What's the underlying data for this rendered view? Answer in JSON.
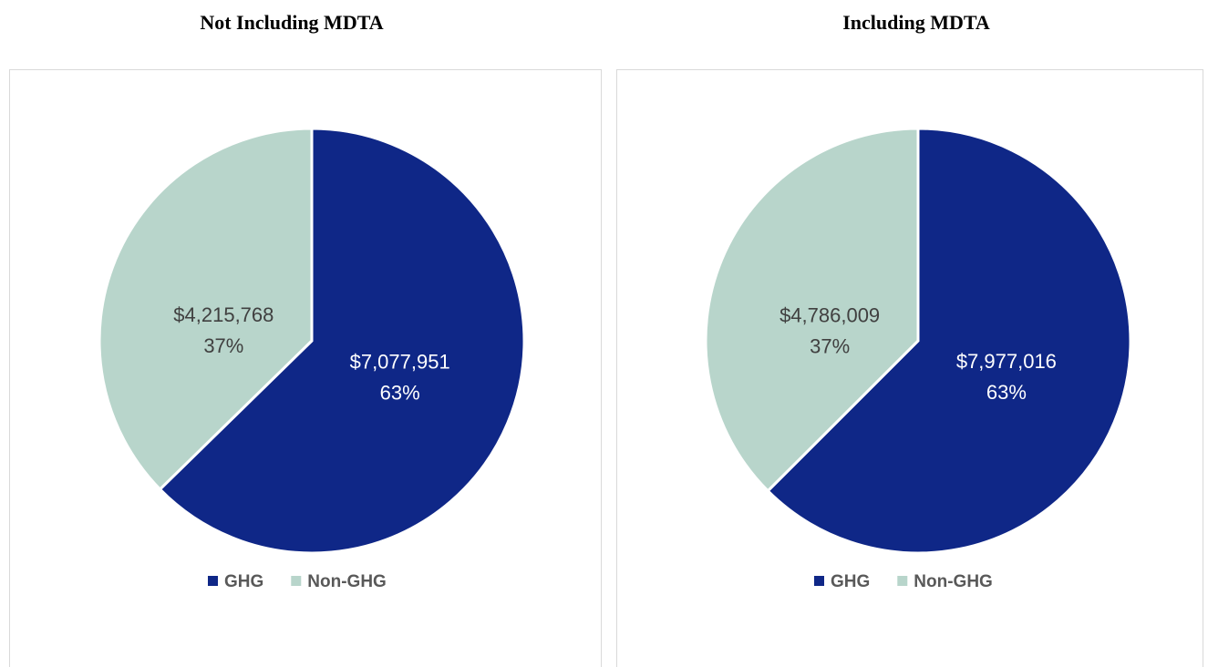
{
  "chart_data": [
    {
      "type": "pie",
      "title": "Not Including MDTA",
      "categories": [
        "GHG",
        "Non-GHG"
      ],
      "values": [
        7077951,
        4215768
      ],
      "value_labels": [
        "$7,077,951",
        "$4,215,768"
      ],
      "percent_labels": [
        "63%",
        "37%"
      ],
      "colors": [
        "#0f2787",
        "#b8d5cb"
      ],
      "legend": "bottom"
    },
    {
      "type": "pie",
      "title": "Including MDTA",
      "categories": [
        "GHG",
        "Non-GHG"
      ],
      "values": [
        7977016,
        4786009
      ],
      "value_labels": [
        "$7,977,016",
        "$4,786,009"
      ],
      "percent_labels": [
        "63%",
        "37%"
      ],
      "colors": [
        "#0f2787",
        "#b8d5cb"
      ],
      "legend": "bottom"
    }
  ]
}
